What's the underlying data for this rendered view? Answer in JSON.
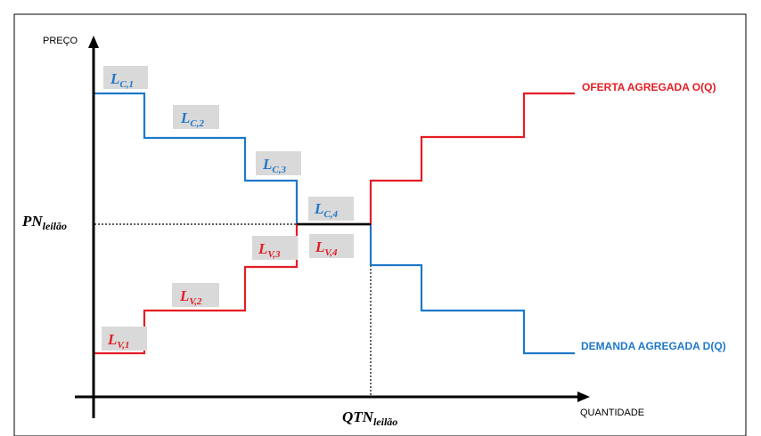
{
  "axes": {
    "y_label": "PREÇO",
    "x_label": "QUANTIDADE"
  },
  "equilibrium": {
    "price_main": "PN",
    "price_sub": "leilão",
    "quantity_main": "QTN",
    "quantity_sub": "leilão"
  },
  "supply": {
    "label": "OFERTA AGREGADA O(Q)",
    "color": "#e31e24",
    "steps": [
      {
        "main": "L",
        "sub": "V,1"
      },
      {
        "main": "L",
        "sub": "V,2"
      },
      {
        "main": "L",
        "sub": "V,3"
      },
      {
        "main": "L",
        "sub": "V,4"
      }
    ]
  },
  "demand": {
    "label": "DEMANDA AGREGADA D(Q)",
    "color": "#1f78c8",
    "steps": [
      {
        "main": "L",
        "sub": "C,1"
      },
      {
        "main": "L",
        "sub": "C,2"
      },
      {
        "main": "L",
        "sub": "C,3"
      },
      {
        "main": "L",
        "sub": "C,4"
      }
    ]
  },
  "colors": {
    "label_box": "#d9d9d9",
    "axis": "#000000",
    "frame": "#000000"
  }
}
